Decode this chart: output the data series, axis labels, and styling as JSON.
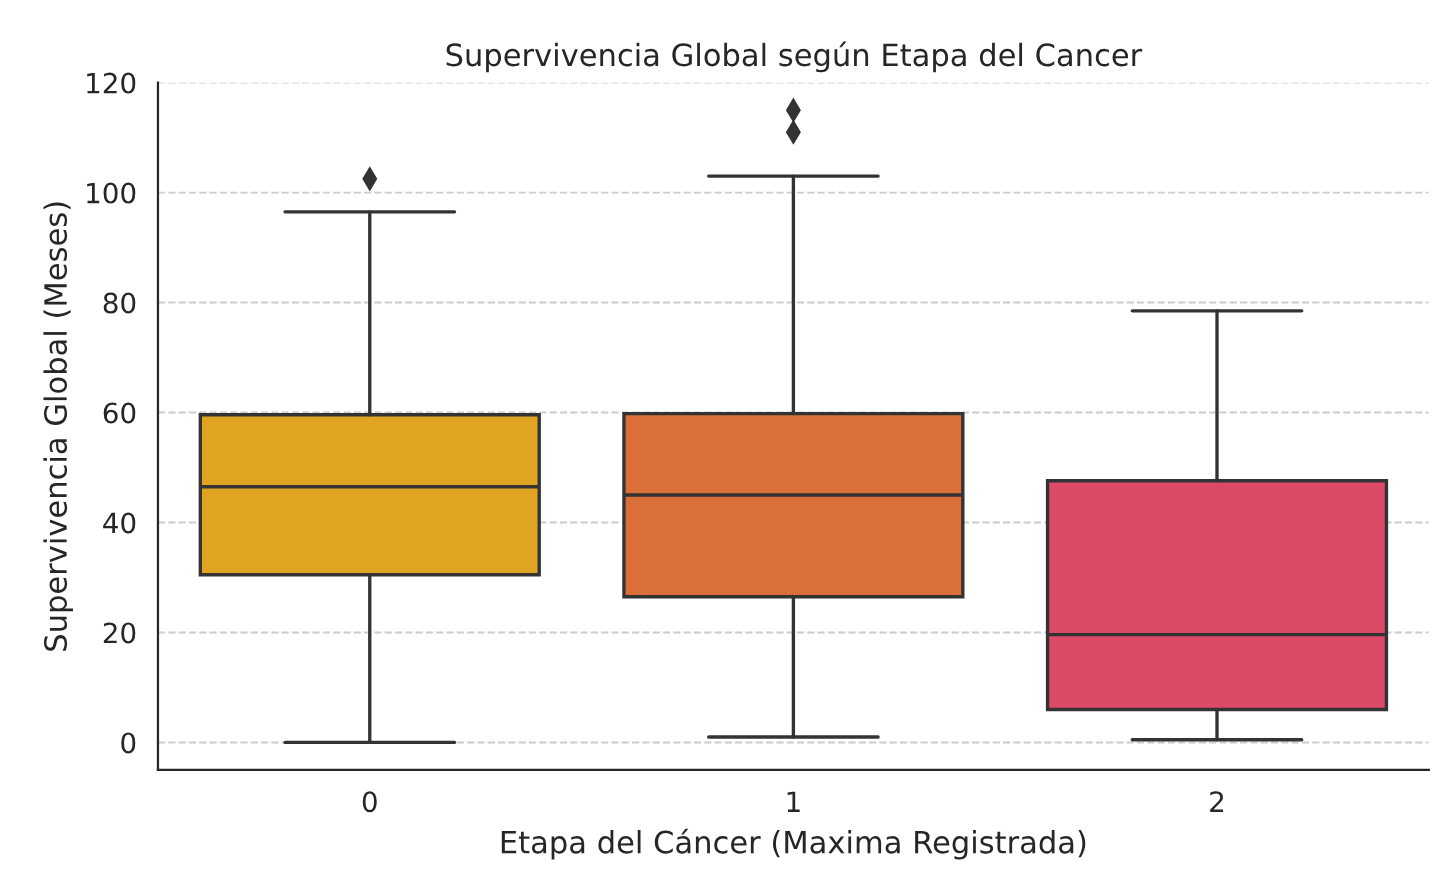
{
  "chart_data": {
    "type": "box",
    "title": "Supervivencia Global según Etapa del Cancer",
    "xlabel": "Etapa del Cáncer (Maxima Registrada)",
    "ylabel": "Supervivencia Global (Meses)",
    "categories": [
      "0",
      "1",
      "2"
    ],
    "colors": [
      "#dfa520",
      "#db6f3a",
      "#dc4a68"
    ],
    "boxes": [
      {
        "low": 0,
        "q1": 30.5,
        "median": 46.5,
        "q3": 59.6,
        "high": 96.5,
        "outliers": [
          102.5
        ]
      },
      {
        "low": 1,
        "q1": 26.5,
        "median": 45,
        "q3": 59.8,
        "high": 103,
        "outliers": [
          111,
          115
        ]
      },
      {
        "low": 0.5,
        "q1": 6,
        "median": 19.6,
        "q3": 47.6,
        "high": 78.5
      }
    ],
    "ylim": [
      -5,
      120
    ],
    "yticks": [
      0,
      20,
      40,
      60,
      80,
      100,
      120
    ],
    "grid": "y"
  }
}
